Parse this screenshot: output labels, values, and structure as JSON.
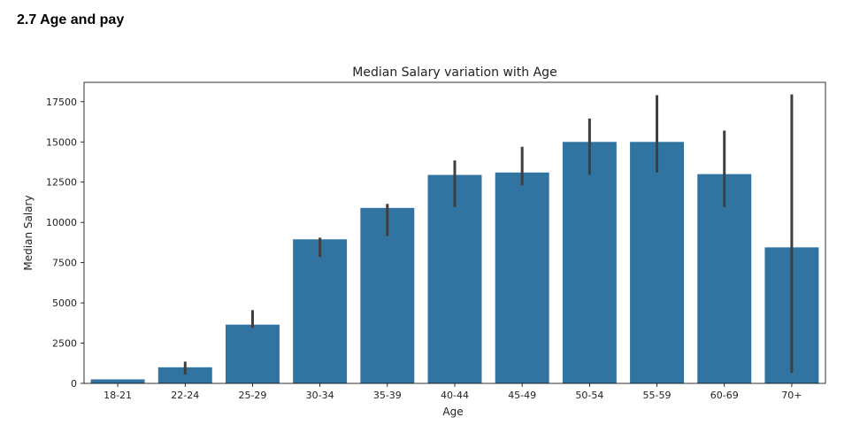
{
  "page": {
    "heading": "2.7 Age and pay"
  },
  "colors": {
    "bar": "#3274a1",
    "error_bar": "#3f3f3f",
    "axis": "#000000"
  },
  "chart_data": {
    "type": "bar",
    "title": "Median Salary variation with Age",
    "xlabel": "Age",
    "ylabel": "Median Salary",
    "categories": [
      "18-21",
      "22-24",
      "25-29",
      "30-34",
      "35-39",
      "40-44",
      "45-49",
      "50-54",
      "55-59",
      "60-69",
      "70+"
    ],
    "values": [
      250,
      1000,
      3650,
      8950,
      10900,
      12950,
      13100,
      15000,
      15000,
      13000,
      8450
    ],
    "error_bars": [
      [
        250,
        250
      ],
      [
        550,
        1350
      ],
      [
        3450,
        4550
      ],
      [
        7850,
        9050
      ],
      [
        9150,
        11150
      ],
      [
        10950,
        13850
      ],
      [
        12300,
        14700
      ],
      [
        12950,
        16450
      ],
      [
        13100,
        17900
      ],
      [
        10950,
        15700
      ],
      [
        650,
        17950
      ]
    ],
    "yticks": [
      0,
      2500,
      5000,
      7500,
      10000,
      12500,
      15000,
      17500
    ],
    "ylim": [
      0,
      18700
    ],
    "grid": false,
    "legend": "none"
  }
}
